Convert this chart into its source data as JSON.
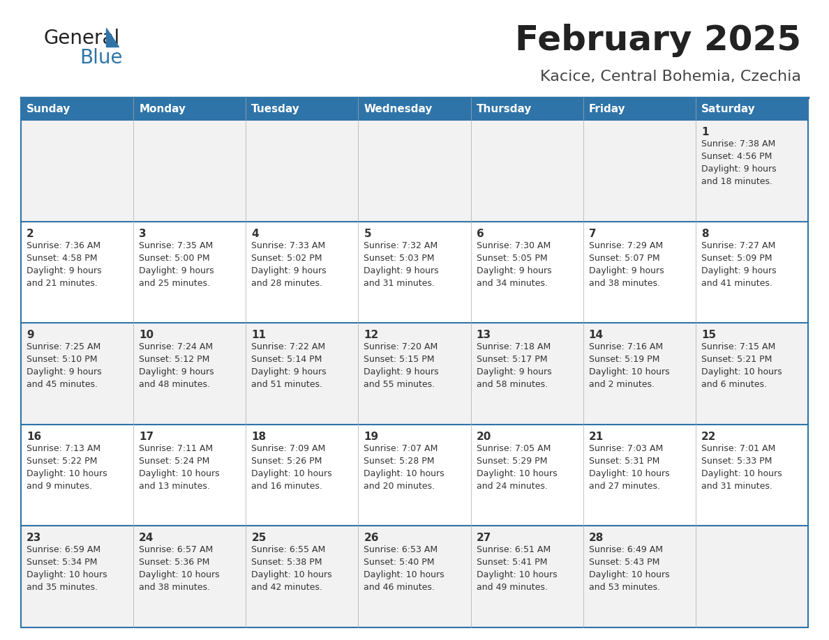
{
  "title": "February 2025",
  "subtitle": "Kacice, Central Bohemia, Czechia",
  "header_bg": "#2E74A8",
  "header_text": "#FFFFFF",
  "row_bg_even": "#F2F2F2",
  "row_bg_odd": "#FFFFFF",
  "separator_color": "#2E74A8",
  "text_color": "#333333",
  "days_of_week": [
    "Sunday",
    "Monday",
    "Tuesday",
    "Wednesday",
    "Thursday",
    "Friday",
    "Saturday"
  ],
  "calendar": [
    [
      {
        "day": "",
        "info": ""
      },
      {
        "day": "",
        "info": ""
      },
      {
        "day": "",
        "info": ""
      },
      {
        "day": "",
        "info": ""
      },
      {
        "day": "",
        "info": ""
      },
      {
        "day": "",
        "info": ""
      },
      {
        "day": "1",
        "info": "Sunrise: 7:38 AM\nSunset: 4:56 PM\nDaylight: 9 hours\nand 18 minutes."
      }
    ],
    [
      {
        "day": "2",
        "info": "Sunrise: 7:36 AM\nSunset: 4:58 PM\nDaylight: 9 hours\nand 21 minutes."
      },
      {
        "day": "3",
        "info": "Sunrise: 7:35 AM\nSunset: 5:00 PM\nDaylight: 9 hours\nand 25 minutes."
      },
      {
        "day": "4",
        "info": "Sunrise: 7:33 AM\nSunset: 5:02 PM\nDaylight: 9 hours\nand 28 minutes."
      },
      {
        "day": "5",
        "info": "Sunrise: 7:32 AM\nSunset: 5:03 PM\nDaylight: 9 hours\nand 31 minutes."
      },
      {
        "day": "6",
        "info": "Sunrise: 7:30 AM\nSunset: 5:05 PM\nDaylight: 9 hours\nand 34 minutes."
      },
      {
        "day": "7",
        "info": "Sunrise: 7:29 AM\nSunset: 5:07 PM\nDaylight: 9 hours\nand 38 minutes."
      },
      {
        "day": "8",
        "info": "Sunrise: 7:27 AM\nSunset: 5:09 PM\nDaylight: 9 hours\nand 41 minutes."
      }
    ],
    [
      {
        "day": "9",
        "info": "Sunrise: 7:25 AM\nSunset: 5:10 PM\nDaylight: 9 hours\nand 45 minutes."
      },
      {
        "day": "10",
        "info": "Sunrise: 7:24 AM\nSunset: 5:12 PM\nDaylight: 9 hours\nand 48 minutes."
      },
      {
        "day": "11",
        "info": "Sunrise: 7:22 AM\nSunset: 5:14 PM\nDaylight: 9 hours\nand 51 minutes."
      },
      {
        "day": "12",
        "info": "Sunrise: 7:20 AM\nSunset: 5:15 PM\nDaylight: 9 hours\nand 55 minutes."
      },
      {
        "day": "13",
        "info": "Sunrise: 7:18 AM\nSunset: 5:17 PM\nDaylight: 9 hours\nand 58 minutes."
      },
      {
        "day": "14",
        "info": "Sunrise: 7:16 AM\nSunset: 5:19 PM\nDaylight: 10 hours\nand 2 minutes."
      },
      {
        "day": "15",
        "info": "Sunrise: 7:15 AM\nSunset: 5:21 PM\nDaylight: 10 hours\nand 6 minutes."
      }
    ],
    [
      {
        "day": "16",
        "info": "Sunrise: 7:13 AM\nSunset: 5:22 PM\nDaylight: 10 hours\nand 9 minutes."
      },
      {
        "day": "17",
        "info": "Sunrise: 7:11 AM\nSunset: 5:24 PM\nDaylight: 10 hours\nand 13 minutes."
      },
      {
        "day": "18",
        "info": "Sunrise: 7:09 AM\nSunset: 5:26 PM\nDaylight: 10 hours\nand 16 minutes."
      },
      {
        "day": "19",
        "info": "Sunrise: 7:07 AM\nSunset: 5:28 PM\nDaylight: 10 hours\nand 20 minutes."
      },
      {
        "day": "20",
        "info": "Sunrise: 7:05 AM\nSunset: 5:29 PM\nDaylight: 10 hours\nand 24 minutes."
      },
      {
        "day": "21",
        "info": "Sunrise: 7:03 AM\nSunset: 5:31 PM\nDaylight: 10 hours\nand 27 minutes."
      },
      {
        "day": "22",
        "info": "Sunrise: 7:01 AM\nSunset: 5:33 PM\nDaylight: 10 hours\nand 31 minutes."
      }
    ],
    [
      {
        "day": "23",
        "info": "Sunrise: 6:59 AM\nSunset: 5:34 PM\nDaylight: 10 hours\nand 35 minutes."
      },
      {
        "day": "24",
        "info": "Sunrise: 6:57 AM\nSunset: 5:36 PM\nDaylight: 10 hours\nand 38 minutes."
      },
      {
        "day": "25",
        "info": "Sunrise: 6:55 AM\nSunset: 5:38 PM\nDaylight: 10 hours\nand 42 minutes."
      },
      {
        "day": "26",
        "info": "Sunrise: 6:53 AM\nSunset: 5:40 PM\nDaylight: 10 hours\nand 46 minutes."
      },
      {
        "day": "27",
        "info": "Sunrise: 6:51 AM\nSunset: 5:41 PM\nDaylight: 10 hours\nand 49 minutes."
      },
      {
        "day": "28",
        "info": "Sunrise: 6:49 AM\nSunset: 5:43 PM\nDaylight: 10 hours\nand 53 minutes."
      },
      {
        "day": "",
        "info": ""
      }
    ]
  ],
  "logo_general_color": "#222222",
  "logo_blue_color": "#2E74A8",
  "logo_triangle_color": "#2E74A8",
  "title_color": "#222222",
  "subtitle_color": "#444444",
  "title_fontsize": 36,
  "subtitle_fontsize": 16,
  "header_fontsize": 11,
  "day_num_fontsize": 11,
  "day_info_fontsize": 9
}
